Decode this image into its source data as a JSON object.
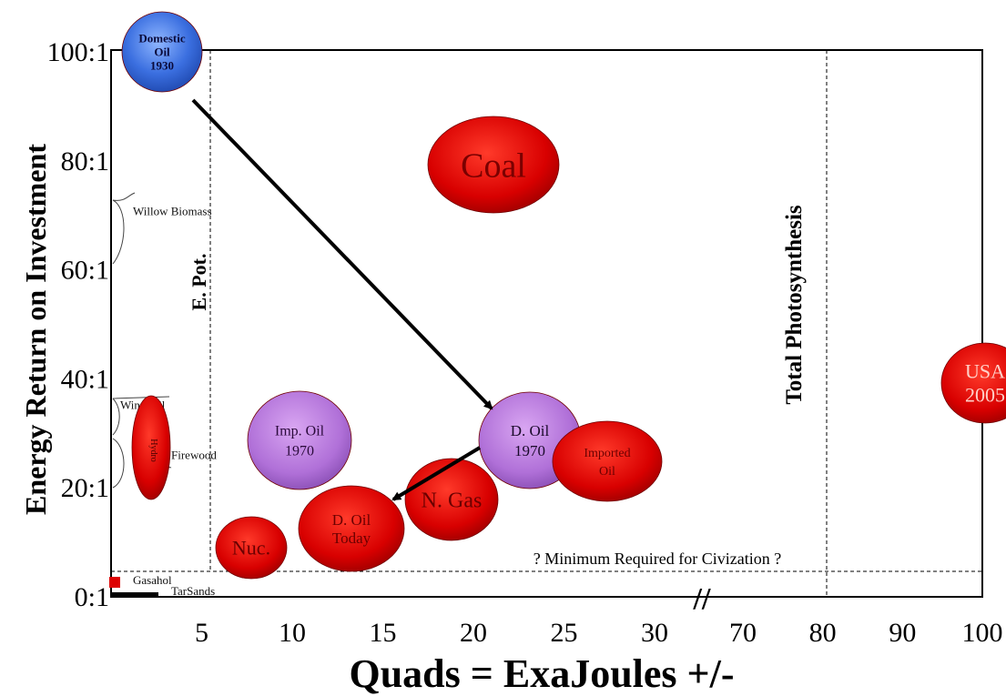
{
  "chart_data": {
    "type": "scatter",
    "title": "",
    "xlabel": "Quads = ExaJoules +/-",
    "ylabel": "Energy Return on Investment",
    "x_scale": "broken",
    "x_ticks": [
      "5",
      "10",
      "15",
      "20",
      "25",
      "30",
      "70",
      "80",
      "90",
      "100"
    ],
    "y_ticks": [
      "0:1",
      "20:1",
      "40:1",
      "60:1",
      "80:1",
      "100:1"
    ],
    "axis_break_symbol": "//",
    "reference_lines": [
      {
        "label": "E. Pot.",
        "orientation": "vertical",
        "x": 6
      },
      {
        "label": "Total Photosynthesis",
        "orientation": "vertical",
        "x": 80
      },
      {
        "label": "? Minimum Required for Civization ?",
        "orientation": "horizontal",
        "y": 5
      }
    ],
    "points": [
      {
        "label_lines": [
          "Domestic",
          "Oil",
          "1930"
        ],
        "x": 3.5,
        "y": 100,
        "color": "#3b6fe0"
      },
      {
        "label_lines": [
          "Coal"
        ],
        "x": 21.5,
        "y": 80,
        "color": "#dd0000"
      },
      {
        "label_lines": [
          "Imp. Oil",
          "1970"
        ],
        "x": 11,
        "y": 30,
        "color": "#b070d8"
      },
      {
        "label_lines": [
          "D. Oil",
          "1970"
        ],
        "x": 23,
        "y": 30,
        "color": "#b070d8"
      },
      {
        "label_lines": [
          "Imported",
          "Oil"
        ],
        "x": 26.5,
        "y": 25,
        "color": "#dd0000"
      },
      {
        "label_lines": [
          "N. Gas"
        ],
        "x": 19,
        "y": 17,
        "color": "#dd0000"
      },
      {
        "label_lines": [
          "D. Oil",
          "Today"
        ],
        "x": 14,
        "y": 12,
        "color": "#dd0000"
      },
      {
        "label_lines": [
          "Nuc."
        ],
        "x": 8.5,
        "y": 10,
        "color": "#dd0000"
      },
      {
        "label_lines": [
          "USA",
          "2005"
        ],
        "x": 100,
        "y": 40,
        "color": "#dd0000"
      },
      {
        "label_lines": [
          "Hydro"
        ],
        "x": 2.5,
        "y": 25,
        "color": "#dd0000"
      }
    ],
    "small_labels": [
      {
        "label": "Willow Biomass",
        "y": 70
      },
      {
        "label": "Windmill",
        "y": 35
      },
      {
        "label": "Firewood",
        "y": 27
      },
      {
        "label": "Gasahol",
        "y": 3
      },
      {
        "label": "TarSands",
        "y": 1
      }
    ],
    "arrows": [
      {
        "from": "Domestic Oil 1930",
        "to": "D. Oil 1970"
      },
      {
        "from": "D. Oil 1970",
        "to": "D. Oil Today"
      }
    ]
  }
}
